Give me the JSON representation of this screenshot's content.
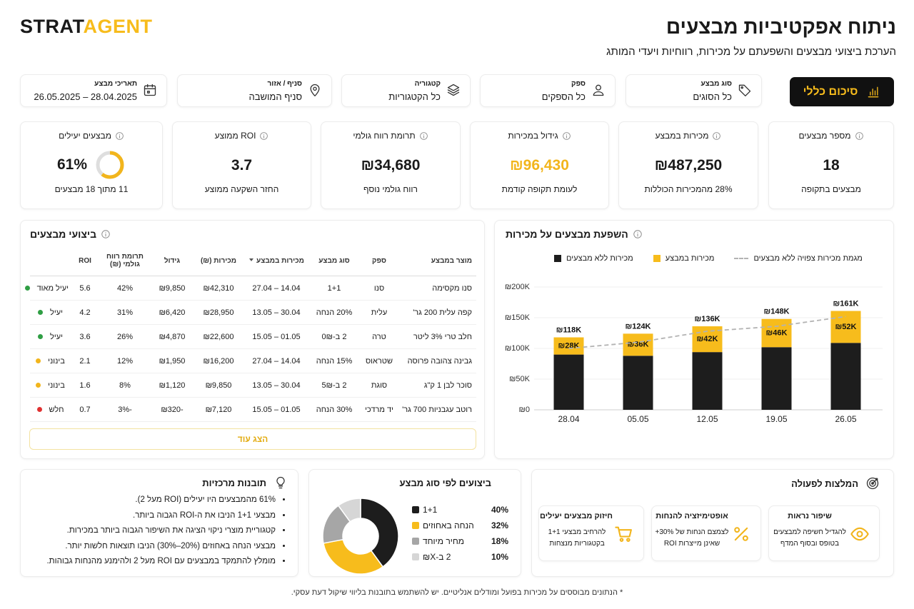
{
  "header": {
    "logo_a": "STRAT",
    "logo_b": "AGENT",
    "title": "ניתוח אפקטיביות מבצעים",
    "subtitle": "הערכת ביצועי מבצעים והשפעתם על מכירות, רווחיות ויעדי המותג"
  },
  "filters": [
    {
      "label": "סוג מבצע",
      "value": "כל הסוגים"
    },
    {
      "label": "ספק",
      "value": "כל הספקים"
    },
    {
      "label": "קטגוריה",
      "value": "כל הקטגוריות"
    },
    {
      "label": "סניף / אזור",
      "value": "סניף המושבה"
    },
    {
      "label": "תאריכי מבצע",
      "value": "28.04.2025 – 26.05.2025"
    }
  ],
  "summary_button": "סיכום כללי",
  "kpis": [
    {
      "title": "מספר מבצעים",
      "value": 18,
      "sub": "מבצעים בתקופה"
    },
    {
      "title": "מכירות במבצע",
      "value": "₪487,250",
      "sub": "28% מהמכירות הכוללות"
    },
    {
      "title": "גידול במכירות",
      "value": "₪96,430",
      "sub": "לעומת תקופה קודמת",
      "color": "#f2b51c"
    },
    {
      "title": "תרומת רווח גולמי",
      "value": "₪34,680",
      "sub": "רווח גולמי נוסף"
    },
    {
      "title": "ROI ממוצע",
      "value": 3.7,
      "sub": "החזר השקעה ממוצע"
    },
    {
      "title": "מבצעים יעילים",
      "value": 61,
      "value_label": "61%",
      "sub": "11 מתוך 18 מבצעים",
      "color": "#f2b51c"
    }
  ],
  "table": {
    "title": "ביצועי מבצעים",
    "columns": [
      "מוצר במבצע",
      "ספק",
      "סוג מבצע",
      "מכירות במבצע",
      "מכירות (₪)",
      "גידול",
      "תרומת רווח גולמי (₪)",
      "ROI"
    ],
    "rows": [
      {
        "cells": [
          "סנו מקסימה",
          "סנו",
          "1+1",
          "14.04 – 27.04",
          "₪42,310",
          "₪9,850",
          "42%",
          "5.6"
        ],
        "status": "יעיל מאוד",
        "status_color": "#2f9e44"
      },
      {
        "cells": [
          "קפה עלית 200 גר'",
          "עלית",
          "20% הנחה",
          "30.04 – 13.05",
          "₪28,950",
          "₪6,420",
          "31%",
          "4.2"
        ],
        "status": "יעיל",
        "status_color": "#2f9e44"
      },
      {
        "cells": [
          "חלב טרי 3% ליטר",
          "טרה",
          "2 ב-0₪",
          "01.05 – 15.05",
          "₪22,600",
          "₪4,870",
          "26%",
          "3.6"
        ],
        "status": "יעיל",
        "status_color": "#2f9e44"
      },
      {
        "cells": [
          "גבינה צהובה פרוסה",
          "שטראוס",
          "15% הנחה",
          "14.04 – 27.04",
          "₪16,200",
          "₪1,950",
          "12%",
          "2.1"
        ],
        "status": "בינוני",
        "status_color": "#f2b51c"
      },
      {
        "cells": [
          "סוכר לבן 1 ק\"ג",
          "סוגת",
          "2 ב-5₪",
          "30.04 – 13.05",
          "₪9,850",
          "₪1,120",
          "8%",
          "1.6"
        ],
        "status": "בינוני",
        "status_color": "#f2b51c"
      },
      {
        "cells": [
          "רוטב עגבניות 700 גר'",
          "יד מרדכי",
          "30% הנחה",
          "01.05 – 15.05",
          "₪7,120",
          "-₪320",
          "-3%",
          "0.7"
        ],
        "status": "חלש",
        "status_color": "#e03131"
      }
    ],
    "more": "הצג עוד"
  },
  "chart_data": [
    {
      "type": "bar",
      "title": "השפעת מבצעים על מכירות",
      "stacked": true,
      "categories": [
        "28.04",
        "05.05",
        "12.05",
        "19.05",
        "26.05"
      ],
      "series": [
        {
          "name": "מכירות ללא מבצעים",
          "color": "#1d1d1d",
          "values": [
            90000,
            88000,
            94000,
            102000,
            109000
          ]
        },
        {
          "name": "מכירות במבצע",
          "color": "#f7bc1c",
          "values": [
            28000,
            36000,
            42000,
            46000,
            52000
          ],
          "value_labels": [
            "₪28K",
            "₪36K",
            "₪42K",
            "₪46K",
            "₪52K"
          ]
        },
        {
          "name": "מגמת מכירות צפויה ללא מבצעים",
          "color": "#b3b3b3",
          "type": "line",
          "dashed": true,
          "values": [
            100000,
            110000,
            128000,
            136000,
            152000
          ]
        }
      ],
      "total_labels": [
        "₪118K",
        "₪124K",
        "₪136K",
        "₪148K",
        "₪161K"
      ],
      "ylim": [
        0,
        200000
      ],
      "yticks": [
        {
          "value": 0,
          "label": "₪0"
        },
        {
          "value": 50000,
          "label": "₪50K"
        },
        {
          "value": 100000,
          "label": "₪100K"
        },
        {
          "value": 150000,
          "label": "₪150K"
        },
        {
          "value": 200000,
          "label": "₪200K"
        }
      ],
      "grid": true
    },
    {
      "type": "pie",
      "title": "ביצועים לפי סוג מבצע",
      "donut": true,
      "categories": [
        "1+1",
        "הנחה באחוזים",
        "מחיר מיוחד",
        "2 ב-X₪"
      ],
      "values": [
        40,
        32,
        18,
        10
      ],
      "value_labels": [
        "40%",
        "32%",
        "18%",
        "10%"
      ],
      "colors": [
        "#1d1d1d",
        "#f7bc1c",
        "#a6a6a6",
        "#d6d6d6"
      ]
    }
  ],
  "insights": {
    "title": "תובנות מרכזיות",
    "items": [
      "61% מהמבצעים היו יעילים (ROI מעל 2).",
      "מבצעי 1+1 הניבו את ה-ROI הגבוה ביותר.",
      "קטגוריית מוצרי ניקוי הציגה את השיפור הגבוה ביותר במכירות.",
      "מבצעי הנחה באחוזים (20%–30%) הניבו תוצאות חלשות יותר.",
      "מומלץ להתמקד במבצעים עם ROI מעל 2 ולהימנע מהנחות גבוהות."
    ]
  },
  "recommendations": {
    "title": "המלצות לפעולה",
    "items": [
      {
        "title": "שיפור נראות",
        "text": "להגדיל חשיפה למבצעים בטופס ובסוף המדף"
      },
      {
        "title": "אופטימיזציה להנחות",
        "text": "לצמצם הנחות של 30%+ שאינן מייצרות ROI"
      },
      {
        "title": "חיזוק מבצעים יעילים",
        "text": "להרחיב מבצעי 1+1 בקטגוריות מנצחות"
      }
    ]
  },
  "footnote": "* הנתונים מבוססים על מכירות בפועל ומודלים אנליטיים. יש להשתמש בתובנות בליווי שיקול דעת עסקי."
}
